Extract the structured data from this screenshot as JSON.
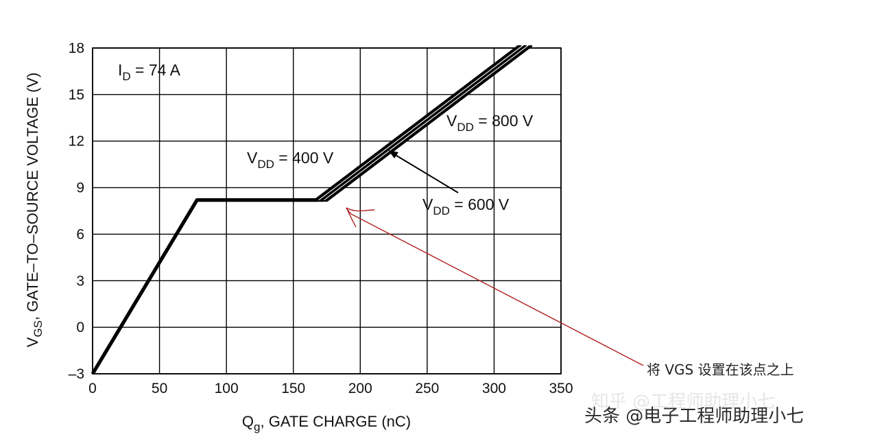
{
  "chart_data": {
    "type": "line",
    "xlabel": "Q, GATE CHARGE (nC)",
    "xlabel_main": "Q",
    "xlabel_sub": "g",
    "xlabel_rest": ", GATE CHARGE (nC)",
    "ylabel_main": "V",
    "ylabel_sub": "GS",
    "ylabel_rest": ", GATE–TO–SOURCE VOLTAGE (V)",
    "xlim": [
      0,
      350
    ],
    "ylim": [
      -3,
      18
    ],
    "x_ticks": [
      "0",
      "50",
      "100",
      "150",
      "200",
      "250",
      "300",
      "350"
    ],
    "y_ticks": [
      "–3",
      "0",
      "3",
      "6",
      "9",
      "12",
      "15",
      "18"
    ],
    "y_tick_values": [
      -3,
      0,
      3,
      6,
      9,
      12,
      15,
      18
    ],
    "x_tick_values": [
      0,
      50,
      100,
      150,
      200,
      250,
      300,
      350
    ],
    "grid": true,
    "series": [
      {
        "name": "V = 400 V",
        "x": [
          0,
          78,
          167,
          320
        ],
        "y": [
          -3,
          8.2,
          8.2,
          18.2
        ]
      },
      {
        "name": "V = 600 V",
        "x": [
          0,
          78,
          171,
          324
        ],
        "y": [
          -3,
          8.2,
          8.2,
          18.2
        ]
      },
      {
        "name": "V = 800 V",
        "x": [
          0,
          78,
          175,
          328
        ],
        "y": [
          -3,
          8.2,
          8.2,
          18.2
        ]
      }
    ],
    "annotations": {
      "id": {
        "main": "I",
        "sub": "D",
        "rest": " = 74 A"
      },
      "vdd400": {
        "main": "V",
        "sub": "DD",
        "rest": " = 400 V"
      },
      "vdd600": {
        "main": "V",
        "sub": "DD",
        "rest": " = 600 V"
      },
      "vdd800": {
        "main": "V",
        "sub": "DD",
        "rest": " = 800 V"
      },
      "note": "将 VGS 设置在该点之上",
      "note_color": "#b22222"
    },
    "colors": {
      "line": "#000000",
      "grid": "#000000",
      "annotation_arrow": "#b22222"
    }
  },
  "watermark": {
    "line1": "知乎 @工程师助理小七",
    "line2": "头条 @电子工程师助理小七"
  }
}
